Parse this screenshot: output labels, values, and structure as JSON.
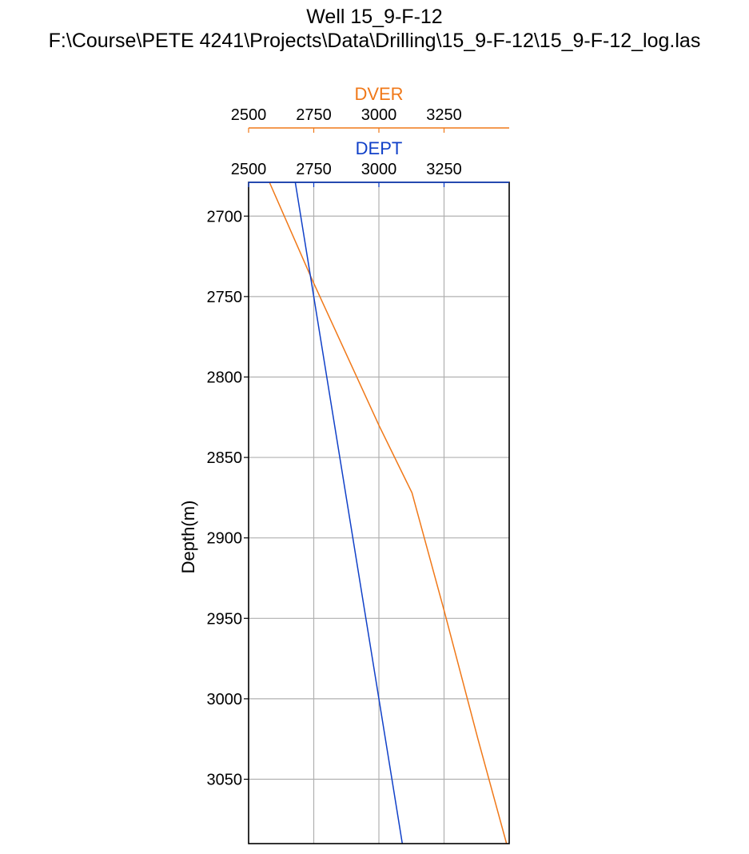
{
  "page": {
    "title_line1": "Well 15_9-F-12",
    "title_line2": "F:\\Course\\PETE 4241\\Projects\\Data\\Drilling\\15_9-F-12\\15_9-F-12_log.las"
  },
  "colors": {
    "dver": "#f07818",
    "dept": "#1040c8",
    "grid": "#b0b0b0",
    "frame": "#000000"
  },
  "chart_data": {
    "type": "line",
    "title": "Well 15_9-F-12",
    "subtitle": "F:\\Course\\PETE 4241\\Projects\\Data\\Drilling\\15_9-F-12\\15_9-F-12_log.las",
    "ylabel": "Depth(m)",
    "ylim": [
      2679,
      3090
    ],
    "y_inverted": true,
    "y_ticks": [
      2700,
      2750,
      2800,
      2850,
      2900,
      2950,
      3000,
      3050
    ],
    "grid": true,
    "x_axes": [
      {
        "name": "DVER",
        "label": "DVER",
        "color": "#f07818",
        "position": "top-outer",
        "xlim": [
          2500,
          3500
        ],
        "ticks": [
          2500,
          2750,
          3000,
          3250
        ]
      },
      {
        "name": "DEPT",
        "label": "DEPT",
        "color": "#1040c8",
        "position": "top-inner",
        "xlim": [
          2500,
          3500
        ],
        "ticks": [
          2500,
          2750,
          3000,
          3250
        ]
      }
    ],
    "series": [
      {
        "name": "DVER",
        "axis": "DVER",
        "color": "#f07818",
        "x": [
          2580,
          2745,
          3000,
          3127,
          3250,
          3380,
          3490
        ],
        "y": [
          2679,
          2740,
          2830,
          2872,
          2945,
          3025,
          3090
        ]
      },
      {
        "name": "DEPT",
        "axis": "DEPT",
        "color": "#1040c8",
        "x": [
          2679,
          2750,
          2850,
          2950,
          3000,
          3050,
          3090
        ],
        "y": [
          2679,
          2750,
          2850,
          2950,
          3000,
          3050,
          3090
        ]
      }
    ]
  }
}
